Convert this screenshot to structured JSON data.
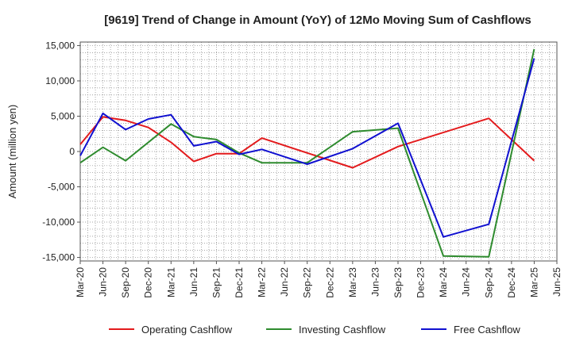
{
  "chart_data": {
    "type": "line",
    "title": "[9619]  Trend of Change in Amount (YoY) of 12Mo Moving Sum of Cashflows",
    "xlabel": "",
    "ylabel": "Amount (million yen)",
    "ylim": [
      -15500,
      15500
    ],
    "yticks": [
      15000,
      10000,
      5000,
      0,
      -5000,
      -10000,
      -15000
    ],
    "ytick_labels": [
      "15,000",
      "10,000",
      "5,000",
      "0",
      "-5,000",
      "-10,000",
      "-15,000"
    ],
    "categories": [
      "Mar-20",
      "Jun-20",
      "Sep-20",
      "Dec-20",
      "Mar-21",
      "Jun-21",
      "Sep-21",
      "Dec-21",
      "Mar-22",
      "Jun-22",
      "Sep-22",
      "Dec-22",
      "Mar-23",
      "Jun-23",
      "Sep-23",
      "Dec-23",
      "Mar-24",
      "Jun-24",
      "Sep-24",
      "Dec-24",
      "Mar-25",
      "Jun-25"
    ],
    "grid": true,
    "legend_position": "bottom",
    "series": [
      {
        "name": "Operating Cashflow",
        "color": "#e31a1c",
        "values": [
          1000,
          4900,
          4400,
          3400,
          1300,
          -1400,
          -300,
          -300,
          1900,
          null,
          -200,
          null,
          -2300,
          null,
          700,
          null,
          null,
          null,
          4700,
          null,
          -1300,
          null
        ]
      },
      {
        "name": "Investing Cashflow",
        "color": "#2e8b2e",
        "values": [
          -1600,
          600,
          -1300,
          null,
          3900,
          2100,
          1700,
          -200,
          -1600,
          null,
          -1600,
          null,
          2800,
          null,
          3300,
          null,
          -14800,
          null,
          -14900,
          null,
          14500,
          null
        ]
      },
      {
        "name": "Free Cashflow",
        "color": "#1010d0",
        "values": [
          -600,
          5400,
          3100,
          4600,
          5200,
          800,
          1400,
          -400,
          300,
          null,
          -1800,
          null,
          400,
          null,
          4000,
          null,
          -12100,
          null,
          -10300,
          null,
          13200,
          null
        ]
      }
    ]
  }
}
